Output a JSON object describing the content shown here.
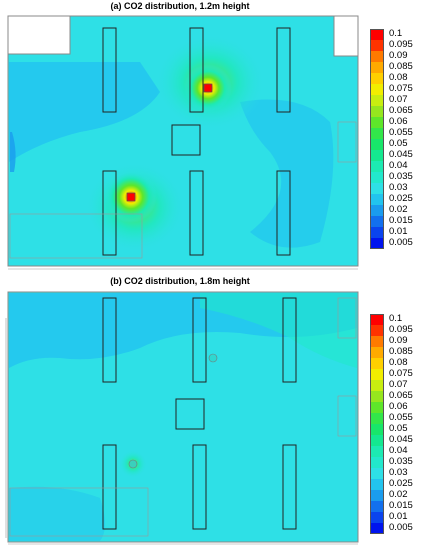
{
  "panels": [
    {
      "title": "(a) CO2 distribution, 1.2m height"
    },
    {
      "title": "(b) CO2 distribution, 1.8m height"
    }
  ],
  "legend": {
    "ticks": [
      "0.1",
      "0.095",
      "0.09",
      "0.085",
      "0.08",
      "0.075",
      "0.07",
      "0.065",
      "0.06",
      "0.055",
      "0.05",
      "0.045",
      "0.04",
      "0.035",
      "0.03",
      "0.025",
      "0.02",
      "0.015",
      "0.01",
      "0.005"
    ],
    "colors": [
      "#ff0000",
      "#ff3300",
      "#ff7a00",
      "#ffaa00",
      "#ffd000",
      "#f2ee00",
      "#c8ee10",
      "#96e61e",
      "#5ee62a",
      "#32e64a",
      "#18e66a",
      "#14e890",
      "#1ceab2",
      "#22e8cc",
      "#2ee0e6",
      "#22c4ee",
      "#1a9cee",
      "#1270ee",
      "#0a44ee",
      "#0014ee"
    ]
  },
  "colors": {
    "background_field": "#2ee0e6",
    "low_field": "#22c4ee",
    "elevated_field": "#22e8cc",
    "hotspot_core": "#ff0000"
  }
}
